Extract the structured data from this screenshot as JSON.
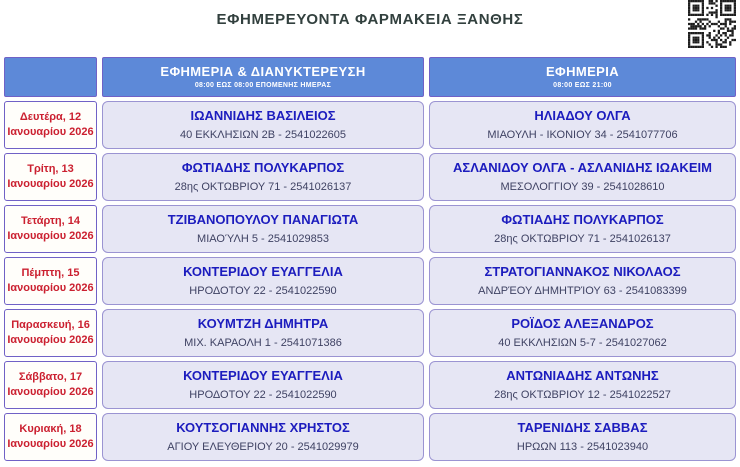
{
  "page": {
    "title": "ΕΦΗΜΕΡΕΥΟΝΤΑ ΦΑΡΜΑΚΕΙΑ ΞΑΝΘΗΣ"
  },
  "colors": {
    "header_blue": "#5d89d8",
    "border_purple": "#7061c6",
    "cell_lavender": "#e6e6f4",
    "date_red": "#cb2030",
    "name_blue": "#1c1cbe",
    "address_gray": "#3f4263"
  },
  "table": {
    "columns": [
      {
        "label": "",
        "sublabel": ""
      },
      {
        "label": "ΕΦΗΜΕΡΙΑ & ΔΙΑΝΥΚΤΕΡΕΥΣΗ",
        "sublabel": "08:00 ΕΩΣ 08:00 ΕΠΟΜΕΝΗΣ ΗΜΕΡΑΣ"
      },
      {
        "label": "ΕΦΗΜΕΡΙΑ",
        "sublabel": "08:00 ΕΩΣ 21:00"
      }
    ],
    "rows": [
      {
        "date_line1": "Δευτέρα, 12",
        "date_line2": "Ιανουαρίου 2026",
        "duty_night": {
          "name": "ΙΩΑΝΝΙΔΗΣ ΒΑΣΙΛΕΙΟΣ",
          "address": "40 ΕΚΚΛΗΣΙΩΝ 2Β - 2541022605"
        },
        "duty_day": {
          "name": "ΗΛΙΑΔΟΥ ΟΛΓΑ",
          "address": "ΜΙΑΟΥΛΗ - ΙΚΟΝΙΟΥ 34 - 2541077706"
        }
      },
      {
        "date_line1": "Τρίτη, 13",
        "date_line2": "Ιανουαρίου 2026",
        "duty_night": {
          "name": "ΦΩΤΙΑΔΗΣ ΠΟΛΥΚΑΡΠΟΣ",
          "address": "28ης ΟΚΤΩΒΡΙΟΥ 71 - 2541026137"
        },
        "duty_day": {
          "name": "ΑΣΛΑΝΙΔΟΥ ΟΛΓΑ - ΑΣΛΑΝΙΔΗΣ ΙΩΑΚΕΙΜ",
          "address": "ΜΕΣΟΛΟΓΓΙΟΥ 39 - 2541028610"
        }
      },
      {
        "date_line1": "Τετάρτη, 14",
        "date_line2": "Ιανουαρίου 2026",
        "duty_night": {
          "name": "ΤΖΙΒΑΝΟΠΟΥΛΟΥ ΠΑΝΑΓΙΩΤΑ",
          "address": "ΜΙΑΟΎΛΗ 5 - 2541029853"
        },
        "duty_day": {
          "name": "ΦΩΤΙΑΔΗΣ ΠΟΛΥΚΑΡΠΟΣ",
          "address": "28ης ΟΚΤΩΒΡΙΟΥ 71 - 2541026137"
        }
      },
      {
        "date_line1": "Πέμπτη, 15",
        "date_line2": "Ιανουαρίου 2026",
        "duty_night": {
          "name": "ΚΟΝΤΕΡΙΔΟΥ ΕΥΑΓΓΕΛΙΑ",
          "address": "ΗΡΟΔΟΤΟΥ 22 - 2541022590"
        },
        "duty_day": {
          "name": "ΣΤΡΑΤΟΓΙΑΝΝΑΚΟΣ ΝΙΚΟΛΑΟΣ",
          "address": "ΑΝΔΡΈΟΥ ΔΗΜΗΤΡΊΟΥ 63 - 2541083399"
        }
      },
      {
        "date_line1": "Παρασκευή, 16",
        "date_line2": "Ιανουαρίου 2026",
        "duty_night": {
          "name": "ΚΟΥΜΤΖΗ ΔΗΜΗΤΡΑ",
          "address": "ΜΙΧ. ΚΑΡΑΟΛΗ 1 - 2541071386"
        },
        "duty_day": {
          "name": "ΡΟΪΔΟΣ ΑΛΕΞΑΝΔΡΟΣ",
          "address": "40 ΕΚΚΛΗΣΙΩΝ 5-7 - 2541027062"
        }
      },
      {
        "date_line1": "Σάββατο, 17",
        "date_line2": "Ιανουαρίου 2026",
        "duty_night": {
          "name": "ΚΟΝΤΕΡΙΔΟΥ ΕΥΑΓΓΕΛΙΑ",
          "address": "ΗΡΟΔΟΤΟΥ 22 - 2541022590"
        },
        "duty_day": {
          "name": "ΑΝΤΩΝΙΑΔΗΣ ΑΝΤΩΝΗΣ",
          "address": "28ης ΟΚΤΩΒΡΙΟΥ 12 - 2541022527"
        }
      },
      {
        "date_line1": "Κυριακή, 18",
        "date_line2": "Ιανουαρίου 2026",
        "duty_night": {
          "name": "ΚΟΥΤΣΟΓΙΑΝΝΗΣ ΧΡΗΣΤΟΣ",
          "address": "ΑΓΙΟΥ ΕΛΕΥΘΕΡΙΟΥ 20 - 2541029979"
        },
        "duty_day": {
          "name": "ΤΑΡΕΝΙΔΗΣ ΣΑΒΒΑΣ",
          "address": "ΗΡΩΩΝ 113 - 2541023940"
        }
      }
    ]
  }
}
